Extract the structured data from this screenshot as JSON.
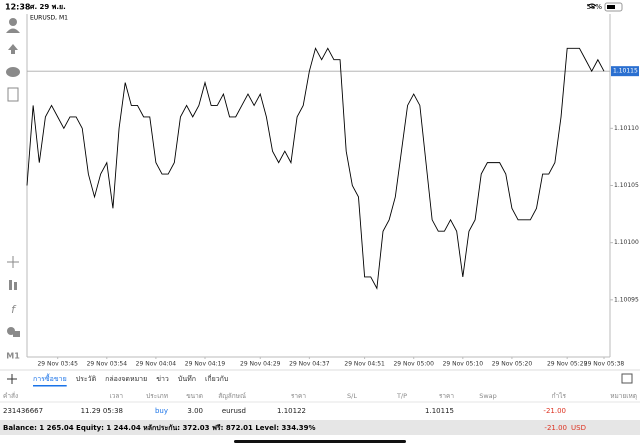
{
  "status_bar": {
    "time": "12:38",
    "date": "ศ. 29 พ.ย.",
    "battery": "58%"
  },
  "toolbar": {
    "timeframe": "M1"
  },
  "chart_data": {
    "type": "line",
    "title": "EURUSD, M1",
    "color": "#000000",
    "categories": [
      null,
      null,
      null,
      null,
      null,
      "29 Nov 03:45",
      null,
      null,
      null,
      null,
      null,
      null,
      null,
      "29 Nov 03:54",
      null,
      null,
      null,
      null,
      null,
      null,
      null,
      "29 Nov 04:04",
      null,
      null,
      null,
      null,
      null,
      null,
      null,
      "29 Nov 04:19",
      null,
      null,
      null,
      null,
      null,
      null,
      null,
      null,
      "29 Nov 04:29",
      null,
      null,
      null,
      null,
      null,
      null,
      null,
      "29 Nov 04:37",
      null,
      null,
      null,
      null,
      null,
      null,
      null,
      null,
      "29 Nov 04:51",
      null,
      null,
      null,
      null,
      null,
      null,
      null,
      "29 Nov 05:00",
      null,
      null,
      null,
      null,
      null,
      null,
      null,
      "29 Nov 05:10",
      null,
      null,
      null,
      null,
      null,
      null,
      null,
      "29 Nov 05:20",
      null,
      null,
      null,
      null,
      null,
      null,
      null,
      null,
      "29 Nov 05:29",
      null,
      null,
      null,
      null,
      null,
      "29 Nov 05:38"
    ],
    "values": [
      1.10105,
      1.10112,
      1.10107,
      1.10111,
      1.10112,
      1.10111,
      1.1011,
      1.10111,
      1.10111,
      1.1011,
      1.10106,
      1.10104,
      1.10106,
      1.10107,
      1.10103,
      1.1011,
      1.10114,
      1.10112,
      1.10112,
      1.10111,
      1.10111,
      1.10107,
      1.10106,
      1.10106,
      1.10107,
      1.10111,
      1.10112,
      1.10111,
      1.10112,
      1.10114,
      1.10112,
      1.10112,
      1.10113,
      1.10111,
      1.10111,
      1.10112,
      1.10113,
      1.10112,
      1.10113,
      1.10111,
      1.10108,
      1.10107,
      1.10108,
      1.10107,
      1.10111,
      1.10112,
      1.10115,
      1.10117,
      1.10116,
      1.10117,
      1.10116,
      1.10116,
      1.10108,
      1.10105,
      1.10104,
      1.10097,
      1.10097,
      1.10096,
      1.10101,
      1.10102,
      1.10104,
      1.10108,
      1.10112,
      1.10113,
      1.10112,
      1.10107,
      1.10102,
      1.10101,
      1.10101,
      1.10102,
      1.10101,
      1.10097,
      1.10101,
      1.10102,
      1.10106,
      1.10107,
      1.10107,
      1.10107,
      1.10106,
      1.10103,
      1.10102,
      1.10102,
      1.10102,
      1.10103,
      1.10106,
      1.10106,
      1.10107,
      1.10111,
      1.10117,
      1.10117,
      1.10117,
      1.10116,
      1.10115,
      1.10116,
      1.10115
    ],
    "ylim": [
      1.1009,
      1.1012
    ],
    "yticks": [
      1.10095,
      {
        "value": 1.101,
        "label": "1.10100"
      },
      1.10105,
      {
        "value": 1.1011,
        "label": "1.10110"
      }
    ],
    "current_price": 1.10115,
    "current_price_color": "#2a6fd0"
  },
  "tabs": [
    "การซื้อขาย",
    "ประวัติ",
    "กล่องจดหมาย",
    "ข่าว",
    "บันทึก",
    "เกี่ยวกับ"
  ],
  "table": {
    "columns": [
      "คำสั่ง",
      "เวลา",
      "ประเภท",
      "ขนาด",
      "สัญลักษณ์",
      "ราคา",
      "S/L",
      "T/P",
      "ราคา",
      "Swap",
      "กำไร",
      "หมายเหตุ"
    ],
    "rows": [
      {
        "order": "231436667",
        "time": "11.29 05:38",
        "type": "buy",
        "volume": "3.00",
        "symbol": "eurusd",
        "price": "1.10122",
        "current_price": "1.10115",
        "profit": "-21.00"
      }
    ]
  },
  "footer": {
    "summary": "Balance: 1 265.04 Equity: 1 244.04 หลักประกัน: 372.03 ฟรี: 872.01 Level: 334.39%",
    "total": "-21.00",
    "currency": "USD"
  }
}
